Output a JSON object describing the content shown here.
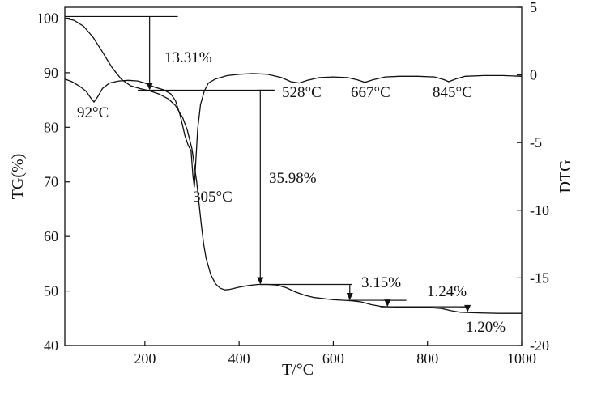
{
  "chart_data": {
    "type": "line",
    "xlabel": "T/°C",
    "ylabel_left": "TG(%)",
    "ylabel_right": "DTG",
    "xlim": [
      30,
      1000
    ],
    "ylim_left": [
      40,
      102
    ],
    "ylim_right": [
      -20,
      5
    ],
    "x_ticks": [
      "200",
      "400",
      "600",
      "800",
      "1000"
    ],
    "y_left_ticks": [
      "40",
      "50",
      "60",
      "70",
      "80",
      "90",
      "100"
    ],
    "y_right_ticks": [
      "-20",
      "-15",
      "-10",
      "-5",
      "0",
      "5"
    ],
    "series": [
      {
        "axis": "left",
        "points": [
          [
            30,
            100
          ],
          [
            50,
            99.6
          ],
          [
            70,
            98.5
          ],
          [
            90,
            96.5
          ],
          [
            110,
            93.8
          ],
          [
            130,
            91
          ],
          [
            150,
            88.8
          ],
          [
            170,
            87.6
          ],
          [
            190,
            87.1
          ],
          [
            210,
            86.7
          ],
          [
            230,
            86.1
          ],
          [
            250,
            85.2
          ],
          [
            265,
            84
          ],
          [
            280,
            81.8
          ],
          [
            290,
            79.5
          ],
          [
            300,
            76
          ],
          [
            305,
            73
          ],
          [
            310,
            70
          ],
          [
            315,
            66
          ],
          [
            320,
            62
          ],
          [
            325,
            58.5
          ],
          [
            330,
            56
          ],
          [
            340,
            53
          ],
          [
            350,
            51.3
          ],
          [
            360,
            50.5
          ],
          [
            370,
            50.2
          ],
          [
            380,
            50.3
          ],
          [
            400,
            50.7
          ],
          [
            420,
            51
          ],
          [
            440,
            51.2
          ],
          [
            460,
            51.2
          ],
          [
            480,
            51.1
          ],
          [
            500,
            50.6
          ],
          [
            520,
            49.8
          ],
          [
            540,
            49.2
          ],
          [
            560,
            48.8
          ],
          [
            580,
            48.6
          ],
          [
            600,
            48.4
          ],
          [
            620,
            48.3
          ],
          [
            640,
            48.2
          ],
          [
            660,
            48
          ],
          [
            680,
            47.5
          ],
          [
            700,
            47.2
          ],
          [
            720,
            47.1
          ],
          [
            760,
            47
          ],
          [
            800,
            47
          ],
          [
            830,
            46.8
          ],
          [
            850,
            46.4
          ],
          [
            870,
            46.1
          ],
          [
            900,
            46
          ],
          [
            950,
            45.9
          ],
          [
            1000,
            45.9
          ]
        ]
      },
      {
        "axis": "right",
        "points": [
          [
            30,
            -0.3
          ],
          [
            45,
            -0.5
          ],
          [
            60,
            -0.8
          ],
          [
            75,
            -1.2
          ],
          [
            85,
            -1.7
          ],
          [
            92,
            -2.0
          ],
          [
            100,
            -1.6
          ],
          [
            110,
            -1.0
          ],
          [
            125,
            -0.6
          ],
          [
            145,
            -0.45
          ],
          [
            165,
            -0.4
          ],
          [
            185,
            -0.45
          ],
          [
            200,
            -0.6
          ],
          [
            220,
            -0.9
          ],
          [
            240,
            -1.1
          ],
          [
            255,
            -1.4
          ],
          [
            265,
            -1.9
          ],
          [
            275,
            -3.0
          ],
          [
            285,
            -4.5
          ],
          [
            292,
            -5.2
          ],
          [
            298,
            -5.6
          ],
          [
            302,
            -7.5
          ],
          [
            305,
            -8.3
          ],
          [
            308,
            -6.5
          ],
          [
            312,
            -4.0
          ],
          [
            318,
            -2.2
          ],
          [
            326,
            -1.2
          ],
          [
            335,
            -0.6
          ],
          [
            350,
            -0.3
          ],
          [
            375,
            -0.05
          ],
          [
            400,
            0.05
          ],
          [
            430,
            0.1
          ],
          [
            460,
            0.05
          ],
          [
            490,
            -0.2
          ],
          [
            510,
            -0.5
          ],
          [
            528,
            -0.6
          ],
          [
            545,
            -0.4
          ],
          [
            570,
            -0.2
          ],
          [
            600,
            -0.15
          ],
          [
            630,
            -0.2
          ],
          [
            650,
            -0.35
          ],
          [
            667,
            -0.55
          ],
          [
            685,
            -0.35
          ],
          [
            710,
            -0.15
          ],
          [
            740,
            -0.1
          ],
          [
            780,
            -0.1
          ],
          [
            815,
            -0.15
          ],
          [
            835,
            -0.35
          ],
          [
            845,
            -0.5
          ],
          [
            860,
            -0.3
          ],
          [
            880,
            -0.1
          ],
          [
            920,
            -0.05
          ],
          [
            960,
            -0.05
          ],
          [
            1000,
            -0.1
          ]
        ]
      }
    ],
    "annotations": {
      "step1": "13.31%",
      "step2": "35.98%",
      "step3": "3.15%",
      "step4": "1.24%",
      "step5": "1.20%",
      "peak1": "92°C",
      "peak2": "305°C",
      "peak3": "528°C",
      "peak4": "667°C",
      "peak5": "845°C"
    }
  }
}
